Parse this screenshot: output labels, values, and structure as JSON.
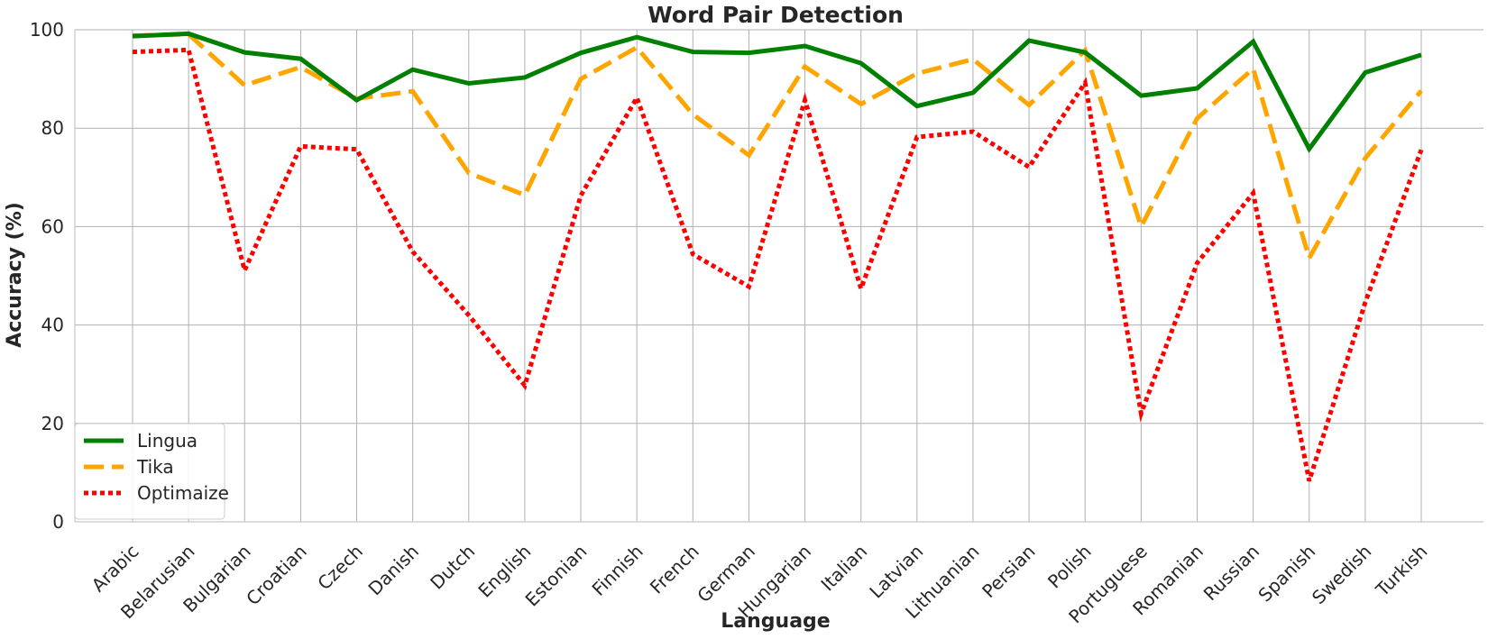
{
  "chart_data": {
    "type": "line",
    "title": "Word Pair Detection",
    "xlabel": "Language",
    "ylabel": "Accuracy (%)",
    "ylim": [
      0,
      100
    ],
    "yticks": [
      0,
      20,
      40,
      60,
      80,
      100
    ],
    "grid": true,
    "legend_position": "bottom-left",
    "categories": [
      "Arabic",
      "Belarusian",
      "Bulgarian",
      "Croatian",
      "Czech",
      "Danish",
      "Dutch",
      "English",
      "Estonian",
      "Finnish",
      "French",
      "German",
      "Hungarian",
      "Italian",
      "Latvian",
      "Lithuanian",
      "Persian",
      "Polish",
      "Portuguese",
      "Romanian",
      "Russian",
      "Spanish",
      "Swedish",
      "Turkish"
    ],
    "series": [
      {
        "name": "Lingua",
        "color": "#008000",
        "style": "solid",
        "values": [
          98.7,
          99.2,
          95.4,
          94.1,
          85.7,
          91.9,
          89.1,
          90.3,
          95.3,
          98.5,
          95.5,
          95.3,
          96.7,
          93.2,
          84.5,
          87.2,
          97.8,
          95.4,
          86.6,
          88.1,
          97.6,
          75.8,
          91.3,
          94.9
        ]
      },
      {
        "name": "Tika",
        "color": "#FFA500",
        "style": "dashed",
        "values": [
          98.8,
          99.1,
          88.7,
          92.4,
          86.0,
          87.5,
          70.9,
          66.4,
          90.0,
          96.4,
          82.8,
          74.5,
          92.5,
          84.9,
          91.1,
          94.0,
          84.7,
          95.8,
          60.0,
          82.0,
          92.1,
          53.6,
          73.9,
          87.6
        ]
      },
      {
        "name": "Optimaize",
        "color": "#FF0000",
        "style": "dotted",
        "values": [
          95.5,
          95.9,
          51.1,
          76.3,
          75.7,
          54.9,
          42.0,
          27.7,
          66.3,
          86.2,
          54.4,
          47.8,
          85.7,
          47.4,
          78.2,
          79.3,
          72.1,
          89.2,
          22.0,
          52.6,
          66.8,
          8.3,
          44.6,
          75.6
        ]
      }
    ]
  }
}
